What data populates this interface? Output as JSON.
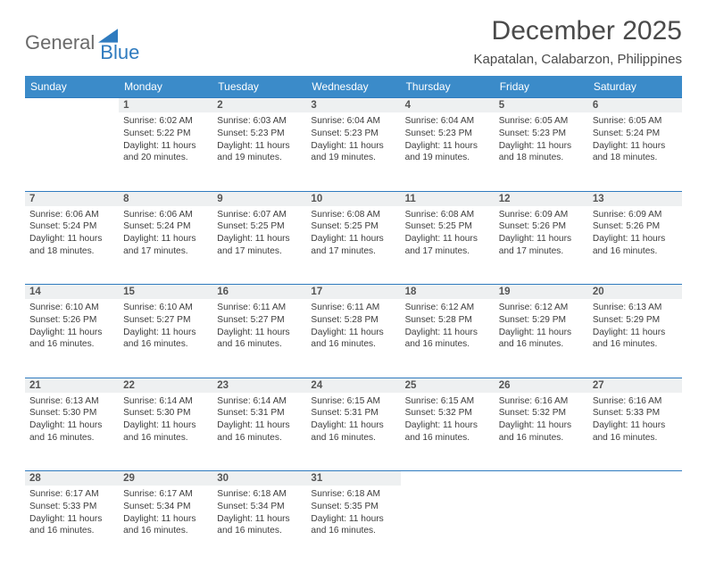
{
  "brand": {
    "text1": "General",
    "text2": "Blue"
  },
  "title": "December 2025",
  "location": "Kapatalan, Calabarzon, Philippines",
  "colors": {
    "header_bg": "#3b8bc9",
    "header_text": "#ffffff",
    "daynum_bg": "#eef0f1",
    "rule": "#2f7bbf",
    "body_text": "#3d3d3d",
    "title_text": "#4a4a4a",
    "logo_gray": "#6a6a6a",
    "logo_blue": "#2f7bbf",
    "page_bg": "#ffffff"
  },
  "typography": {
    "title_fontsize": 30,
    "location_fontsize": 15,
    "header_fontsize": 12,
    "daynum_fontsize": 11.5,
    "cell_fontsize": 10.2
  },
  "weekdays": [
    "Sunday",
    "Monday",
    "Tuesday",
    "Wednesday",
    "Thursday",
    "Friday",
    "Saturday"
  ],
  "weeks": [
    [
      null,
      {
        "n": "1",
        "sr": "6:02 AM",
        "ss": "5:22 PM",
        "dl": "11 hours and 20 minutes."
      },
      {
        "n": "2",
        "sr": "6:03 AM",
        "ss": "5:23 PM",
        "dl": "11 hours and 19 minutes."
      },
      {
        "n": "3",
        "sr": "6:04 AM",
        "ss": "5:23 PM",
        "dl": "11 hours and 19 minutes."
      },
      {
        "n": "4",
        "sr": "6:04 AM",
        "ss": "5:23 PM",
        "dl": "11 hours and 19 minutes."
      },
      {
        "n": "5",
        "sr": "6:05 AM",
        "ss": "5:23 PM",
        "dl": "11 hours and 18 minutes."
      },
      {
        "n": "6",
        "sr": "6:05 AM",
        "ss": "5:24 PM",
        "dl": "11 hours and 18 minutes."
      }
    ],
    [
      {
        "n": "7",
        "sr": "6:06 AM",
        "ss": "5:24 PM",
        "dl": "11 hours and 18 minutes."
      },
      {
        "n": "8",
        "sr": "6:06 AM",
        "ss": "5:24 PM",
        "dl": "11 hours and 17 minutes."
      },
      {
        "n": "9",
        "sr": "6:07 AM",
        "ss": "5:25 PM",
        "dl": "11 hours and 17 minutes."
      },
      {
        "n": "10",
        "sr": "6:08 AM",
        "ss": "5:25 PM",
        "dl": "11 hours and 17 minutes."
      },
      {
        "n": "11",
        "sr": "6:08 AM",
        "ss": "5:25 PM",
        "dl": "11 hours and 17 minutes."
      },
      {
        "n": "12",
        "sr": "6:09 AM",
        "ss": "5:26 PM",
        "dl": "11 hours and 17 minutes."
      },
      {
        "n": "13",
        "sr": "6:09 AM",
        "ss": "5:26 PM",
        "dl": "11 hours and 16 minutes."
      }
    ],
    [
      {
        "n": "14",
        "sr": "6:10 AM",
        "ss": "5:26 PM",
        "dl": "11 hours and 16 minutes."
      },
      {
        "n": "15",
        "sr": "6:10 AM",
        "ss": "5:27 PM",
        "dl": "11 hours and 16 minutes."
      },
      {
        "n": "16",
        "sr": "6:11 AM",
        "ss": "5:27 PM",
        "dl": "11 hours and 16 minutes."
      },
      {
        "n": "17",
        "sr": "6:11 AM",
        "ss": "5:28 PM",
        "dl": "11 hours and 16 minutes."
      },
      {
        "n": "18",
        "sr": "6:12 AM",
        "ss": "5:28 PM",
        "dl": "11 hours and 16 minutes."
      },
      {
        "n": "19",
        "sr": "6:12 AM",
        "ss": "5:29 PM",
        "dl": "11 hours and 16 minutes."
      },
      {
        "n": "20",
        "sr": "6:13 AM",
        "ss": "5:29 PM",
        "dl": "11 hours and 16 minutes."
      }
    ],
    [
      {
        "n": "21",
        "sr": "6:13 AM",
        "ss": "5:30 PM",
        "dl": "11 hours and 16 minutes."
      },
      {
        "n": "22",
        "sr": "6:14 AM",
        "ss": "5:30 PM",
        "dl": "11 hours and 16 minutes."
      },
      {
        "n": "23",
        "sr": "6:14 AM",
        "ss": "5:31 PM",
        "dl": "11 hours and 16 minutes."
      },
      {
        "n": "24",
        "sr": "6:15 AM",
        "ss": "5:31 PM",
        "dl": "11 hours and 16 minutes."
      },
      {
        "n": "25",
        "sr": "6:15 AM",
        "ss": "5:32 PM",
        "dl": "11 hours and 16 minutes."
      },
      {
        "n": "26",
        "sr": "6:16 AM",
        "ss": "5:32 PM",
        "dl": "11 hours and 16 minutes."
      },
      {
        "n": "27",
        "sr": "6:16 AM",
        "ss": "5:33 PM",
        "dl": "11 hours and 16 minutes."
      }
    ],
    [
      {
        "n": "28",
        "sr": "6:17 AM",
        "ss": "5:33 PM",
        "dl": "11 hours and 16 minutes."
      },
      {
        "n": "29",
        "sr": "6:17 AM",
        "ss": "5:34 PM",
        "dl": "11 hours and 16 minutes."
      },
      {
        "n": "30",
        "sr": "6:18 AM",
        "ss": "5:34 PM",
        "dl": "11 hours and 16 minutes."
      },
      {
        "n": "31",
        "sr": "6:18 AM",
        "ss": "5:35 PM",
        "dl": "11 hours and 16 minutes."
      },
      null,
      null,
      null
    ]
  ],
  "labels": {
    "sunrise": "Sunrise:",
    "sunset": "Sunset:",
    "daylight": "Daylight:"
  }
}
